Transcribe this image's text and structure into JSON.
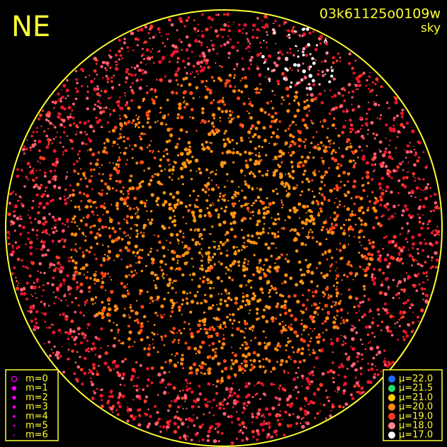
{
  "header": {
    "direction": "NE",
    "frame_id": "03k61125o0109w",
    "mode": "sky"
  },
  "magnitude_legend": {
    "color": "#ff00ff",
    "items": [
      "m=0",
      "m=1",
      "m=2",
      "m=3",
      "m=4",
      "m=5",
      "m=6"
    ]
  },
  "brightness_legend": {
    "items": [
      {
        "label": "μ=22.0",
        "color": "#1e6cff"
      },
      {
        "label": "μ=21.5",
        "color": "#22dd66"
      },
      {
        "label": "μ=21.0",
        "color": "#ffd000"
      },
      {
        "label": "μ=20.0",
        "color": "#ff8a10"
      },
      {
        "label": "μ=19.0",
        "color": "#ff3a20"
      },
      {
        "label": "μ=18.0",
        "color": "#ff8090"
      },
      {
        "label": "μ=17.0",
        "color": "#ffffff"
      }
    ]
  }
}
